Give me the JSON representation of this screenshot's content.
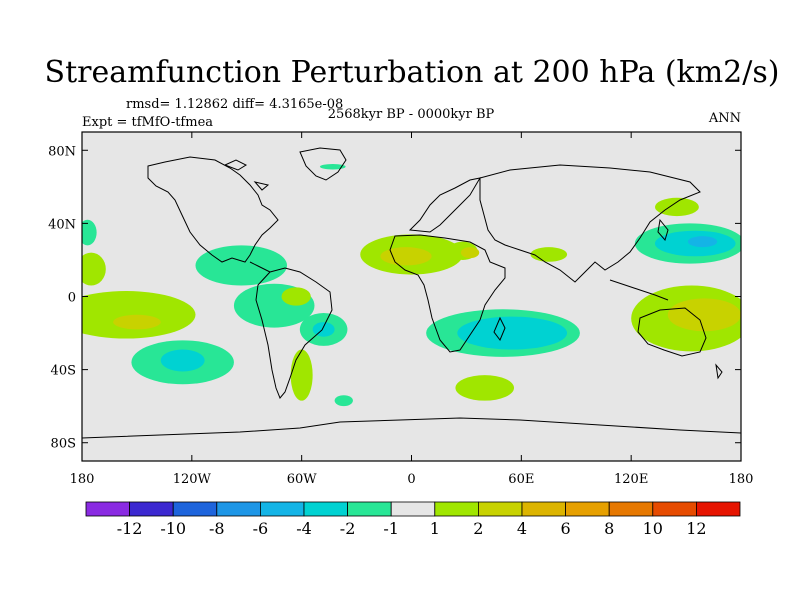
{
  "chart_data": {
    "type": "heatmap",
    "subtype": "filled-contour-map",
    "title": "Streamfunction Perturbation at 200 hPa (km2/s)",
    "stats_text": "rmsd= 1.12862  diff= 4.3165e-08",
    "left_label": "Expt = tfMfO-tfmea",
    "center_label": "2568kyr BP - 0000kyr BP",
    "right_label": "ANN",
    "xlim": [
      -180,
      180
    ],
    "ylim": [
      -90,
      90
    ],
    "x_ticks": [
      {
        "value": -180,
        "label": "180"
      },
      {
        "value": -120,
        "label": "120W"
      },
      {
        "value": -60,
        "label": "60W"
      },
      {
        "value": 0,
        "label": "0"
      },
      {
        "value": 60,
        "label": "60E"
      },
      {
        "value": 120,
        "label": "120E"
      },
      {
        "value": 180,
        "label": "180"
      }
    ],
    "y_ticks": [
      {
        "value": 80,
        "label": "80N"
      },
      {
        "value": 40,
        "label": "40N"
      },
      {
        "value": 0,
        "label": "0"
      },
      {
        "value": -40,
        "label": "40S"
      },
      {
        "value": -80,
        "label": "80S"
      }
    ],
    "colorbar": {
      "colors": [
        "#8a2be2",
        "#3c28d0",
        "#1e64dc",
        "#1e96e6",
        "#14b4e6",
        "#00d2d2",
        "#28e696",
        "#e6e6e6",
        "#a0e600",
        "#c8d200",
        "#dcb400",
        "#e6a000",
        "#e67800",
        "#e64b00",
        "#e61400"
      ],
      "labels": [
        "-12",
        "-10",
        "-8",
        "-6",
        "-4",
        "-2",
        "-1",
        "1",
        "2",
        "4",
        "6",
        "8",
        "10",
        "12"
      ]
    },
    "background_color": "#e6e6e6",
    "anomaly_regions": [
      {
        "level": "1-2",
        "color": "#a0e600",
        "lon": 0,
        "lat": 23,
        "rx": 28,
        "ry": 11
      },
      {
        "level": "2-4",
        "color": "#c8d200",
        "lon": -3,
        "lat": 22,
        "rx": 14,
        "ry": 5
      },
      {
        "level": "1-2",
        "color": "#a0e600",
        "lon": 28,
        "lat": 25,
        "rx": 8,
        "ry": 5
      },
      {
        "level": "2-4",
        "color": "#c8d200",
        "lon": 32,
        "lat": 24,
        "rx": 5,
        "ry": 3
      },
      {
        "level": "1-2",
        "color": "#a0e600",
        "lon": 75,
        "lat": 23,
        "rx": 10,
        "ry": 4
      },
      {
        "level": "1-2",
        "color": "#a0e600",
        "lon": 145,
        "lat": 49,
        "rx": 12,
        "ry": 5
      },
      {
        "level": "-1--2",
        "color": "#28e696",
        "lon": 152,
        "lat": 29,
        "rx": 30,
        "ry": 11
      },
      {
        "level": "-2--4",
        "color": "#00d2d2",
        "lon": 155,
        "lat": 29,
        "rx": 22,
        "ry": 7
      },
      {
        "level": "-4--6",
        "color": "#14b4e6",
        "lon": 159,
        "lat": 30,
        "rx": 8,
        "ry": 3
      },
      {
        "level": "-1--2",
        "color": "#28e696",
        "lon": 50,
        "lat": -20,
        "rx": 42,
        "ry": 13
      },
      {
        "level": "-2--4",
        "color": "#00d2d2",
        "lon": 55,
        "lat": -20,
        "rx": 30,
        "ry": 9
      },
      {
        "level": "1-2",
        "color": "#a0e600",
        "lon": 153,
        "lat": -12,
        "rx": 33,
        "ry": 18
      },
      {
        "level": "2-4",
        "color": "#c8d200",
        "lon": 160,
        "lat": -10,
        "rx": 20,
        "ry": 9
      },
      {
        "level": "1-2",
        "color": "#a0e600",
        "lon": 40,
        "lat": -50,
        "rx": 16,
        "ry": 7
      },
      {
        "level": "-1--2",
        "color": "#28e696",
        "lon": -37,
        "lat": -57,
        "rx": 5,
        "ry": 3
      },
      {
        "level": "1-2",
        "color": "#a0e600",
        "lon": -156,
        "lat": -10,
        "rx": 38,
        "ry": 13
      },
      {
        "level": "2-4",
        "color": "#c8d200",
        "lon": -150,
        "lat": -14,
        "rx": 13,
        "ry": 4
      },
      {
        "level": "1-2",
        "color": "#a0e600",
        "lon": -175,
        "lat": 15,
        "rx": 8,
        "ry": 9
      },
      {
        "level": "-1--2",
        "color": "#28e696",
        "lon": -177,
        "lat": 35,
        "rx": 5,
        "ry": 7
      },
      {
        "level": "-1--2",
        "color": "#28e696",
        "lon": -93,
        "lat": 17,
        "rx": 25,
        "ry": 11
      },
      {
        "level": "-1--2",
        "color": "#28e696",
        "lon": -75,
        "lat": -5,
        "rx": 22,
        "ry": 12
      },
      {
        "level": "1-2",
        "color": "#a0e600",
        "lon": -63,
        "lat": 0,
        "rx": 8,
        "ry": 5
      },
      {
        "level": "-1--2",
        "color": "#28e696",
        "lon": -48,
        "lat": -18,
        "rx": 13,
        "ry": 9
      },
      {
        "level": "-2--4",
        "color": "#00d2d2",
        "lon": -48,
        "lat": -18,
        "rx": 6,
        "ry": 4
      },
      {
        "level": "1-2",
        "color": "#a0e600",
        "lon": -60,
        "lat": -43,
        "rx": 6,
        "ry": 14
      },
      {
        "level": "-1--2",
        "color": "#28e696",
        "lon": -125,
        "lat": -36,
        "rx": 28,
        "ry": 12
      },
      {
        "level": "-2--4",
        "color": "#00d2d2",
        "lon": -125,
        "lat": -35,
        "rx": 12,
        "ry": 6
      },
      {
        "level": "-1--2",
        "color": "#28e696",
        "lon": -43,
        "lat": 71,
        "rx": 7,
        "ry": 1.5
      }
    ]
  }
}
